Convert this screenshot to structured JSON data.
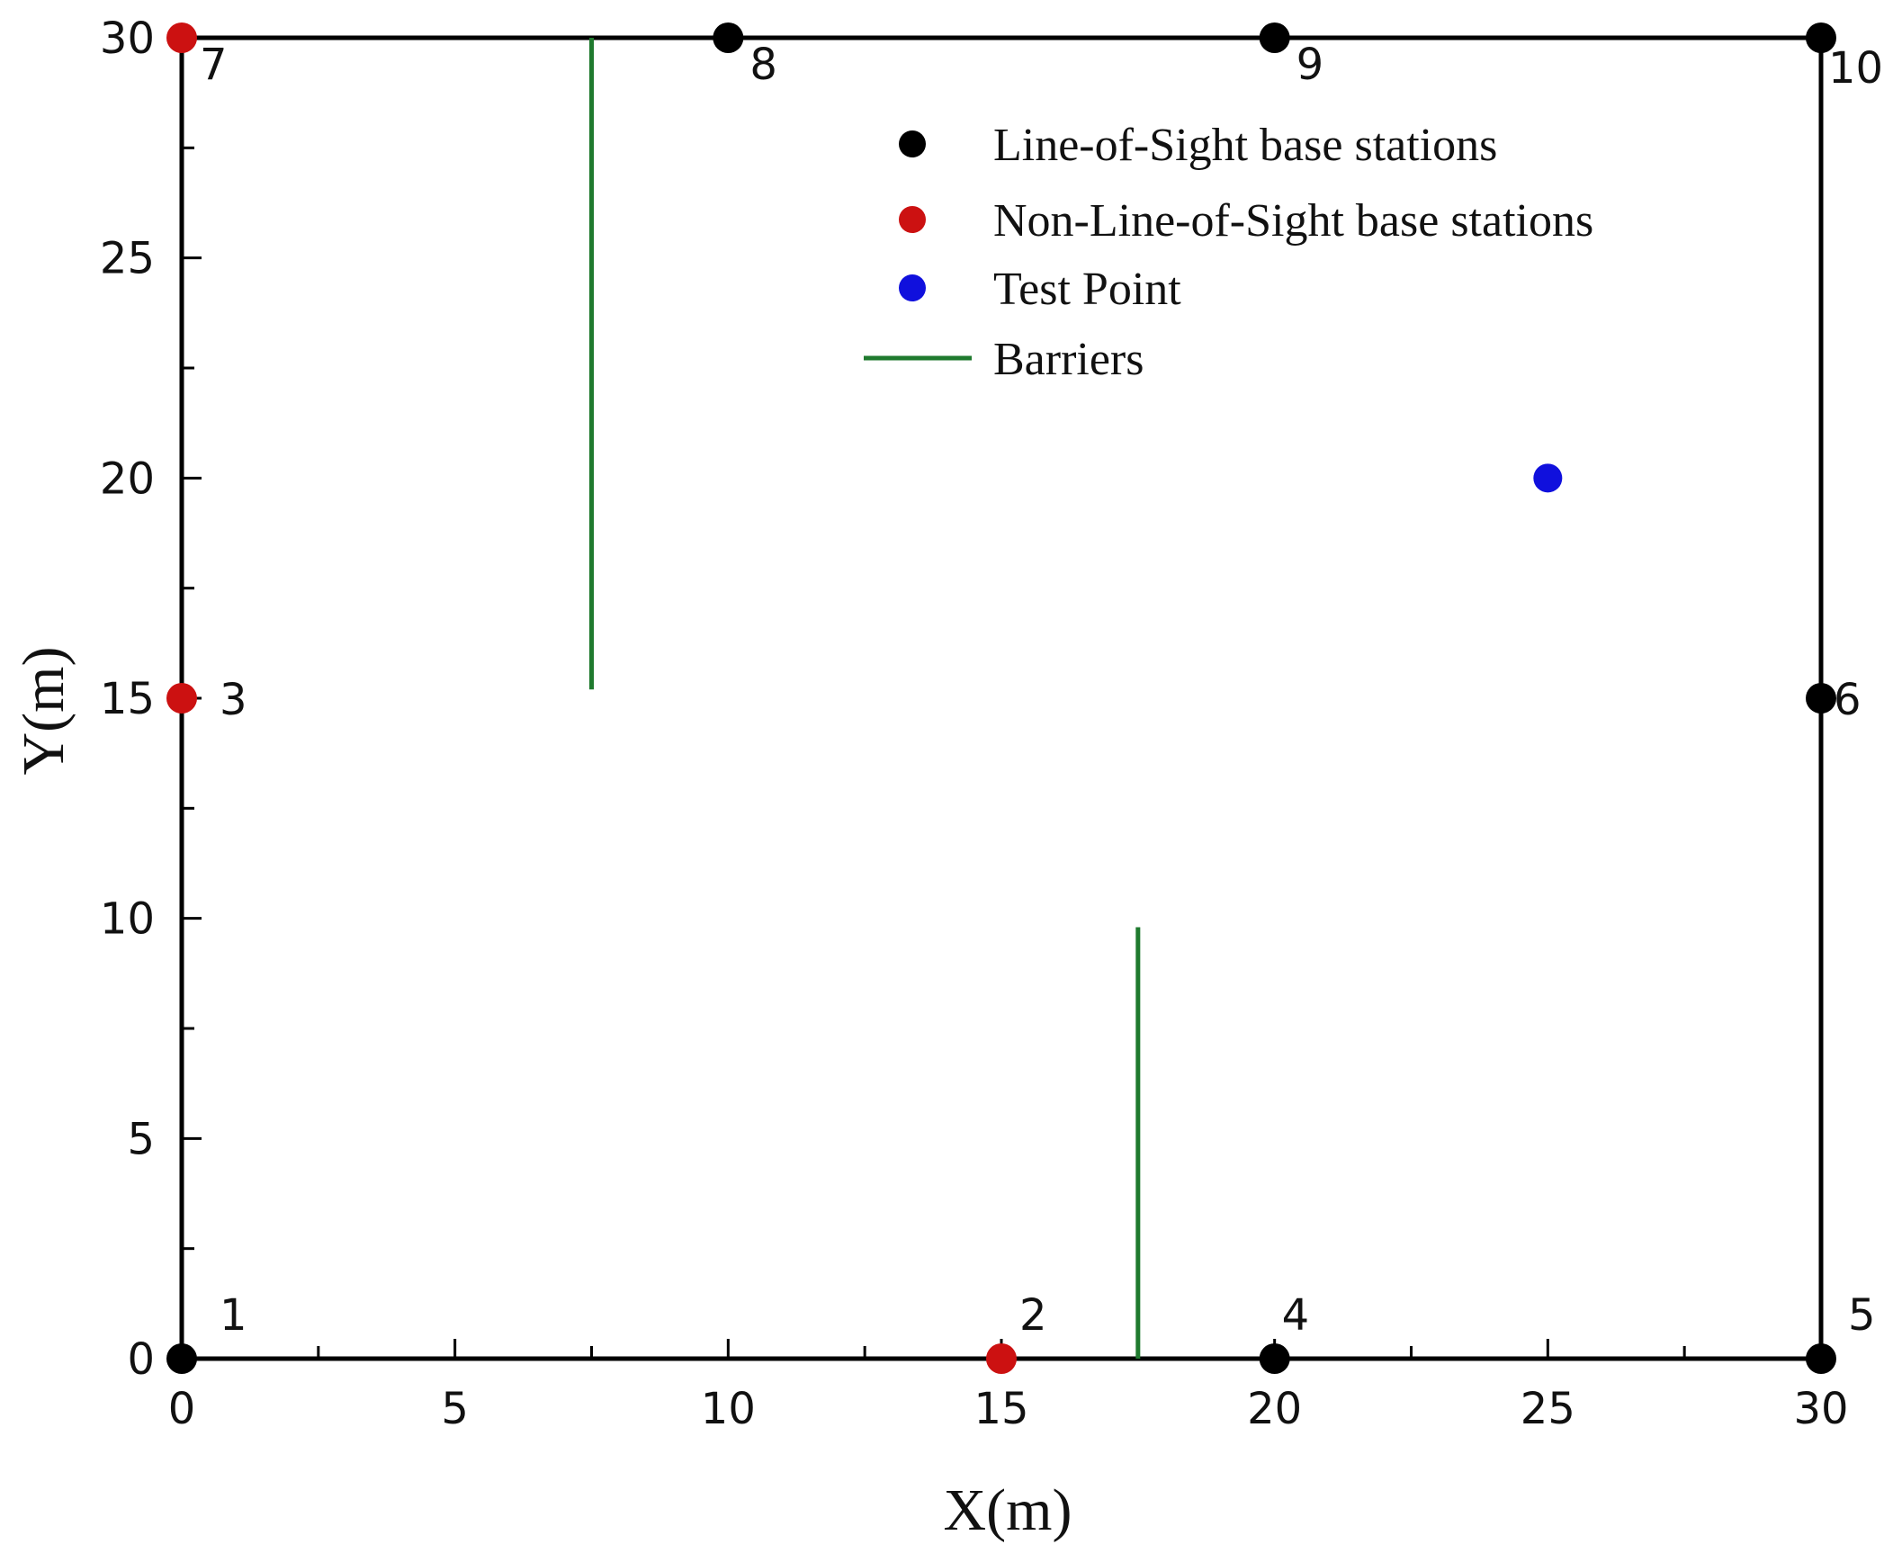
{
  "chart_data": {
    "type": "scatter",
    "title": "",
    "xlabel": "X(m)",
    "ylabel": "Y(m)",
    "xlim": [
      0,
      30
    ],
    "ylim": [
      0,
      30
    ],
    "xticks": [
      0,
      5,
      10,
      15,
      20,
      25,
      30
    ],
    "yticks": [
      0,
      5,
      10,
      15,
      20,
      25,
      30
    ],
    "grid": false,
    "legend_placement": "top-right",
    "boundary": {
      "color": "#000000",
      "x_min": 0,
      "x_max": 30,
      "y_min": 0,
      "y_max": 30
    },
    "series": [
      {
        "name": "Line-of-Sight base stations",
        "kind": "points",
        "color": "#000000",
        "points": [
          {
            "label": "1",
            "x": 0,
            "y": 0
          },
          {
            "label": "4",
            "x": 20,
            "y": 0
          },
          {
            "label": "5",
            "x": 30,
            "y": 0
          },
          {
            "label": "6",
            "x": 30,
            "y": 15
          },
          {
            "label": "8",
            "x": 10,
            "y": 30
          },
          {
            "label": "9",
            "x": 20,
            "y": 30
          },
          {
            "label": "10",
            "x": 30,
            "y": 30
          }
        ]
      },
      {
        "name": "Non-Line-of-Sight base stations",
        "kind": "points",
        "color": "#cc1111",
        "points": [
          {
            "label": "2",
            "x": 15,
            "y": 0
          },
          {
            "label": "3",
            "x": 0,
            "y": 15
          },
          {
            "label": "7",
            "x": 0,
            "y": 30
          }
        ]
      },
      {
        "name": "Test Point",
        "kind": "points",
        "color": "#1010dd",
        "points": [
          {
            "label": "",
            "x": 25,
            "y": 20
          }
        ]
      },
      {
        "name": "Barriers",
        "kind": "segments",
        "color": "#1f7a2e",
        "segments": [
          {
            "x1": 7.5,
            "y1": 15.2,
            "x2": 7.5,
            "y2": 30
          },
          {
            "x1": 17.5,
            "y1": 0,
            "x2": 17.5,
            "y2": 9.8
          }
        ]
      }
    ]
  }
}
